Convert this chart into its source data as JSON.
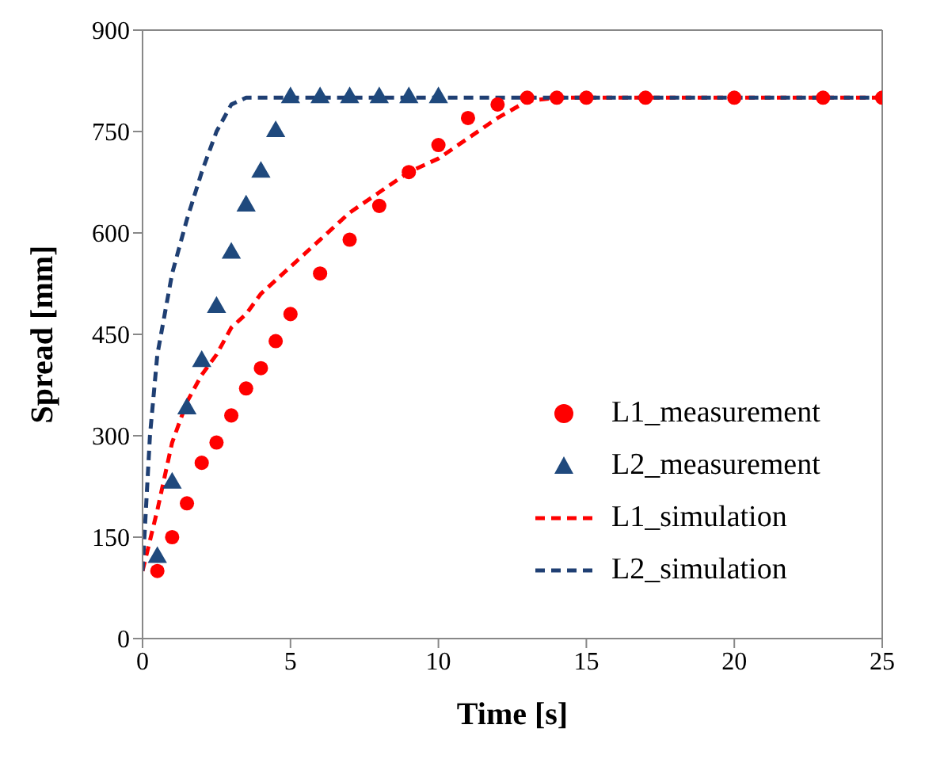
{
  "chart_data": {
    "type": "line",
    "xlabel": "Time [s]",
    "ylabel": "Spread [mm]",
    "xlim": [
      0,
      25
    ],
    "xticks": [
      0,
      5,
      10,
      15,
      20,
      25
    ],
    "ylim": [
      0,
      900
    ],
    "yticks": [
      0,
      150,
      300,
      450,
      600,
      750,
      900
    ],
    "legend": "bottom right",
    "series": [
      {
        "name": "L1_measurement",
        "type": "scatter",
        "marker": "circle",
        "color": "#ff0000",
        "x": [
          0.5,
          1,
          1.5,
          2,
          2.5,
          3,
          3.5,
          4,
          4.5,
          5,
          6,
          7,
          8,
          9,
          10,
          11,
          12,
          13,
          14,
          15,
          17,
          20,
          23,
          25
        ],
        "values": [
          100,
          150,
          200,
          260,
          290,
          330,
          370,
          400,
          440,
          480,
          540,
          590,
          640,
          690,
          730,
          770,
          790,
          800,
          800,
          800,
          800,
          800,
          800,
          800
        ]
      },
      {
        "name": "L2_measurement",
        "type": "scatter",
        "marker": "triangle",
        "color": "#1f497d",
        "x": [
          0.5,
          1,
          1.5,
          2,
          2.5,
          3,
          3.5,
          4,
          4.5,
          5,
          6,
          7,
          8,
          9,
          10
        ],
        "values": [
          120,
          230,
          340,
          410,
          490,
          570,
          640,
          690,
          750,
          800,
          800,
          800,
          800,
          800,
          800
        ]
      },
      {
        "name": "L1_simulation",
        "line_style": "dashed",
        "marker": "none",
        "color": "#ff0000",
        "x": [
          0,
          0.5,
          1,
          1.5,
          2,
          2.5,
          3,
          3.5,
          4,
          5,
          6,
          7,
          8,
          9,
          10,
          11,
          12,
          13,
          14,
          25
        ],
        "values": [
          100,
          190,
          290,
          350,
          390,
          420,
          460,
          480,
          510,
          550,
          590,
          630,
          660,
          690,
          710,
          740,
          770,
          795,
          800,
          800
        ]
      },
      {
        "name": "L2_simulation",
        "line_style": "dashed",
        "marker": "none",
        "color": "#1f3f73",
        "x": [
          0,
          0.25,
          0.5,
          1,
          1.5,
          2,
          2.5,
          3,
          3.5,
          25
        ],
        "values": [
          100,
          300,
          420,
          540,
          620,
          690,
          750,
          790,
          800,
          800
        ]
      }
    ]
  }
}
